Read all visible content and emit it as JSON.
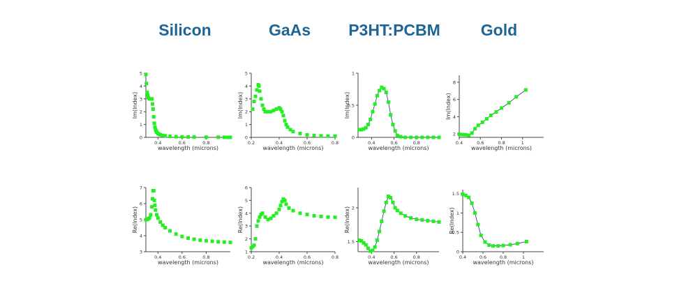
{
  "colors": {
    "marker": "#22ee22",
    "line": "#2b2f6e",
    "title": "#1f6496",
    "axis": "#444444"
  },
  "titles": [
    "Silicon",
    "GaAs",
    "P3HT:PCBM",
    "Gold"
  ],
  "chart_data": [
    {
      "type": "scatter",
      "material": "Silicon",
      "quantity": "imaginary",
      "xlabel": "wavelength (microns)",
      "ylabel": "Im(Index)",
      "xlim": [
        0.3,
        1.0
      ],
      "ylim": [
        0,
        5
      ],
      "xticks": [
        0.4,
        0.6,
        0.8
      ],
      "xtick_labels": [
        "0.4",
        "0.6",
        "0.8"
      ],
      "yticks": [
        0,
        1,
        2,
        3,
        4,
        5
      ],
      "ytick_labels": [
        "0",
        "1",
        "2",
        "3",
        "4",
        "5"
      ],
      "line": false,
      "series": [
        {
          "x": [
            0.3,
            0.305,
            0.31,
            0.315,
            0.32,
            0.33,
            0.34,
            0.35,
            0.355,
            0.36,
            0.365,
            0.37,
            0.375,
            0.38,
            0.385,
            0.39,
            0.4,
            0.41,
            0.42,
            0.44,
            0.46,
            0.5,
            0.55,
            0.6,
            0.65,
            0.7,
            0.8,
            0.9,
            0.95,
            0.98,
            1.0
          ],
          "y": [
            4.9,
            4.2,
            3.5,
            3.3,
            3.1,
            3.0,
            3.0,
            3.0,
            2.6,
            2.2,
            1.6,
            1.1,
            0.8,
            0.6,
            0.5,
            0.4,
            0.3,
            0.25,
            0.2,
            0.15,
            0.12,
            0.08,
            0.05,
            0.04,
            0.03,
            0.02,
            0.01,
            0.01,
            0.01,
            0.0,
            0.0
          ]
        }
      ]
    },
    {
      "type": "scatter",
      "material": "GaAs",
      "quantity": "imaginary",
      "xlabel": "wavelength (microns)",
      "ylabel": "Im(Index)",
      "xlim": [
        0.2,
        0.8
      ],
      "ylim": [
        0,
        5
      ],
      "xticks": [
        0.2,
        0.4,
        0.6,
        0.8
      ],
      "xtick_labels": [
        "0.2",
        "0.4",
        "0.6",
        "0.8"
      ],
      "yticks": [
        0,
        1,
        2,
        3,
        4,
        5
      ],
      "ytick_labels": [
        "0",
        "1",
        "2",
        "3",
        "4",
        "5"
      ],
      "line": false,
      "series": [
        {
          "x": [
            0.21,
            0.22,
            0.23,
            0.24,
            0.25,
            0.255,
            0.26,
            0.27,
            0.28,
            0.29,
            0.3,
            0.32,
            0.34,
            0.36,
            0.38,
            0.4,
            0.41,
            0.42,
            0.43,
            0.44,
            0.45,
            0.46,
            0.48,
            0.5,
            0.55,
            0.6,
            0.65,
            0.7,
            0.75,
            0.8
          ],
          "y": [
            2.2,
            2.8,
            3.2,
            3.7,
            4.1,
            4.0,
            3.6,
            3.0,
            2.5,
            2.2,
            2.0,
            2.0,
            2.0,
            2.1,
            2.2,
            2.3,
            2.2,
            2.0,
            1.7,
            1.3,
            1.0,
            0.8,
            0.6,
            0.45,
            0.3,
            0.2,
            0.15,
            0.12,
            0.1,
            0.1
          ]
        }
      ]
    },
    {
      "type": "scatter",
      "material": "P3HT:PCBM",
      "quantity": "imaginary",
      "xlabel": "wavelength (microns)",
      "ylabel": "Im(Index)",
      "xlim": [
        0.28,
        1.0
      ],
      "ylim": [
        0,
        1
      ],
      "xticks": [
        0.4,
        0.6,
        0.8
      ],
      "xtick_labels": [
        "0.4",
        "0.6",
        "0.8"
      ],
      "yticks": [
        0,
        0.5,
        1
      ],
      "ytick_labels": [
        "0",
        "0.5",
        "1"
      ],
      "line": true,
      "series": [
        {
          "x": [
            0.29,
            0.31,
            0.33,
            0.35,
            0.37,
            0.39,
            0.41,
            0.43,
            0.45,
            0.47,
            0.49,
            0.51,
            0.53,
            0.55,
            0.57,
            0.59,
            0.61,
            0.63,
            0.66,
            0.7,
            0.75,
            0.8,
            0.85,
            0.9,
            0.95,
            1.0
          ],
          "y": [
            0.12,
            0.12,
            0.13,
            0.15,
            0.2,
            0.28,
            0.4,
            0.52,
            0.65,
            0.73,
            0.78,
            0.76,
            0.7,
            0.55,
            0.35,
            0.2,
            0.1,
            0.03,
            0.01,
            0.0,
            0.0,
            0.0,
            0.0,
            0.0,
            0.0,
            0.0
          ]
        }
      ]
    },
    {
      "type": "scatter",
      "material": "Gold",
      "quantity": "imaginary",
      "xlabel": "wavelength (microns)",
      "ylabel": "Im(Index)",
      "xlim": [
        0.4,
        1.2
      ],
      "ylim": [
        1.6,
        8.8
      ],
      "xticks": [
        0.4,
        0.6,
        0.8,
        1
      ],
      "xtick_labels": [
        "0.4",
        "0.6",
        "0.8",
        "1"
      ],
      "yticks": [
        2,
        4,
        6,
        8
      ],
      "ytick_labels": [
        "2",
        "4",
        "6",
        "8"
      ],
      "line": true,
      "series": [
        {
          "x": [
            0.4,
            0.43,
            0.46,
            0.49,
            0.52,
            0.55,
            0.58,
            0.62,
            0.66,
            0.7,
            0.75,
            0.8,
            0.87,
            0.94,
            1.03
          ],
          "y": [
            1.95,
            1.92,
            1.9,
            1.85,
            2.1,
            2.6,
            3.0,
            3.35,
            3.75,
            4.15,
            4.55,
            5.0,
            5.6,
            6.3,
            7.1
          ]
        }
      ]
    },
    {
      "type": "scatter",
      "material": "Silicon",
      "quantity": "real",
      "xlabel": "wavelength (microns)",
      "ylabel": "Re(Index)",
      "xlim": [
        0.3,
        1.0
      ],
      "ylim": [
        3,
        7
      ],
      "xticks": [
        0.4,
        0.6,
        0.8
      ],
      "xtick_labels": [
        "0.4",
        "0.6",
        "0.8"
      ],
      "yticks": [
        3,
        4,
        5,
        6,
        7
      ],
      "ytick_labels": [
        "3",
        "4",
        "5",
        "6",
        "7"
      ],
      "line": false,
      "series": [
        {
          "x": [
            0.3,
            0.31,
            0.32,
            0.33,
            0.34,
            0.35,
            0.355,
            0.36,
            0.365,
            0.37,
            0.375,
            0.38,
            0.39,
            0.4,
            0.42,
            0.44,
            0.46,
            0.5,
            0.55,
            0.6,
            0.65,
            0.7,
            0.75,
            0.8,
            0.85,
            0.9,
            0.95,
            1.0
          ],
          "y": [
            5.0,
            5.0,
            5.05,
            5.1,
            5.3,
            5.8,
            6.3,
            6.8,
            6.8,
            6.2,
            5.9,
            5.6,
            5.3,
            5.1,
            4.85,
            4.65,
            4.5,
            4.3,
            4.1,
            3.95,
            3.85,
            3.78,
            3.72,
            3.68,
            3.65,
            3.62,
            3.6,
            3.58
          ]
        }
      ]
    },
    {
      "type": "scatter",
      "material": "GaAs",
      "quantity": "real",
      "xlabel": "wavelength (microns)",
      "ylabel": "Re(Index)",
      "xlim": [
        0.2,
        0.8
      ],
      "ylim": [
        1,
        6
      ],
      "xticks": [
        0.2,
        0.4,
        0.6,
        0.8
      ],
      "xtick_labels": [
        "0.2",
        "0.4",
        "0.6",
        "0.8"
      ],
      "yticks": [
        1,
        2,
        3,
        4,
        5,
        6
      ],
      "ytick_labels": [
        "1",
        "2",
        "3",
        "4",
        "5",
        "6"
      ],
      "line": false,
      "series": [
        {
          "x": [
            0.2,
            0.21,
            0.22,
            0.23,
            0.24,
            0.25,
            0.26,
            0.27,
            0.28,
            0.3,
            0.32,
            0.34,
            0.36,
            0.38,
            0.4,
            0.41,
            0.42,
            0.43,
            0.44,
            0.45,
            0.47,
            0.5,
            0.55,
            0.6,
            0.65,
            0.7,
            0.75,
            0.8
          ],
          "y": [
            1.3,
            1.4,
            1.5,
            2.0,
            3.0,
            3.4,
            3.7,
            3.9,
            4.0,
            3.7,
            3.5,
            3.6,
            3.8,
            4.0,
            4.3,
            4.6,
            4.9,
            5.1,
            5.0,
            4.7,
            4.4,
            4.2,
            4.0,
            3.9,
            3.8,
            3.75,
            3.7,
            3.68
          ]
        }
      ]
    },
    {
      "type": "scatter",
      "material": "P3HT:PCBM",
      "quantity": "real",
      "xlabel": "wavelength (microns)",
      "ylabel": "Re(Index)",
      "xlim": [
        0.28,
        1.0
      ],
      "ylim": [
        1.35,
        2.3
      ],
      "xticks": [
        0.4,
        0.6,
        0.8
      ],
      "xtick_labels": [
        "0.4",
        "0.6",
        "0.8"
      ],
      "yticks": [
        1.5,
        2
      ],
      "ytick_labels": [
        "1.5",
        "2"
      ],
      "line": true,
      "series": [
        {
          "x": [
            0.29,
            0.31,
            0.33,
            0.35,
            0.37,
            0.39,
            0.41,
            0.43,
            0.45,
            0.47,
            0.49,
            0.51,
            0.53,
            0.55,
            0.57,
            0.59,
            0.61,
            0.63,
            0.66,
            0.7,
            0.75,
            0.8,
            0.85,
            0.9,
            0.95,
            1.0
          ],
          "y": [
            1.52,
            1.51,
            1.48,
            1.45,
            1.4,
            1.36,
            1.37,
            1.42,
            1.52,
            1.65,
            1.8,
            1.95,
            2.08,
            2.17,
            2.15,
            2.08,
            2.0,
            1.96,
            1.92,
            1.88,
            1.85,
            1.83,
            1.82,
            1.81,
            1.8,
            1.79
          ]
        }
      ]
    },
    {
      "type": "scatter",
      "material": "Gold",
      "quantity": "real",
      "xlabel": "wavelength (microns)",
      "ylabel": "Re(Index)",
      "xlim": [
        0.4,
        1.2
      ],
      "ylim": [
        0,
        1.6
      ],
      "xticks": [
        0.4,
        0.6,
        0.8,
        1
      ],
      "xtick_labels": [
        "0.4",
        "0.6",
        "0.8",
        "1"
      ],
      "yticks": [
        0,
        0.5,
        1,
        1.5
      ],
      "ytick_labels": [
        "0",
        "0.5",
        "1",
        "1.5"
      ],
      "line": true,
      "series": [
        {
          "x": [
            0.4,
            0.43,
            0.46,
            0.49,
            0.52,
            0.55,
            0.58,
            0.62,
            0.66,
            0.7,
            0.75,
            0.8,
            0.87,
            0.94,
            1.03
          ],
          "y": [
            1.48,
            1.45,
            1.4,
            1.25,
            1.0,
            0.7,
            0.42,
            0.25,
            0.17,
            0.15,
            0.15,
            0.16,
            0.18,
            0.21,
            0.26
          ]
        }
      ]
    }
  ]
}
